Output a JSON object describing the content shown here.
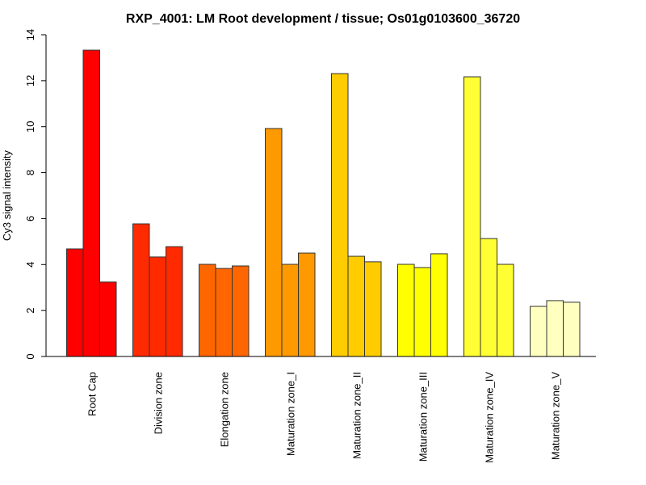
{
  "chart_data": {
    "type": "bar",
    "title": "RXP_4001: LM Root development / tissue; Os01g0103600_36720",
    "xlabel": "",
    "ylabel": "Cy3 signal intensity",
    "ylim": [
      0,
      14
    ],
    "yticks": [
      0,
      2,
      4,
      6,
      8,
      10,
      12,
      14
    ],
    "grid": false,
    "legend": "none",
    "categories": [
      "Root Cap",
      "Division zone",
      "Elongation zone",
      "Maturation zone_I",
      "Maturation zone_II",
      "Maturation zone_III",
      "Maturation zone_IV",
      "Maturation zone_V"
    ],
    "colors": [
      "#ff0000",
      "#ff2a00",
      "#ff6600",
      "#ff9900",
      "#ffcc00",
      "#ffff00",
      "#ffff33",
      "#ffffbf"
    ],
    "replicates_per_category": 3,
    "values": [
      [
        4.68,
        13.33,
        3.24
      ],
      [
        5.77,
        4.33,
        4.78
      ],
      [
        4.01,
        3.83,
        3.94
      ],
      [
        9.92,
        4.01,
        4.5
      ],
      [
        12.31,
        4.36,
        4.12
      ],
      [
        4.01,
        3.87,
        4.47
      ],
      [
        12.17,
        5.13,
        4.01
      ],
      [
        2.18,
        2.43,
        2.36
      ]
    ]
  }
}
